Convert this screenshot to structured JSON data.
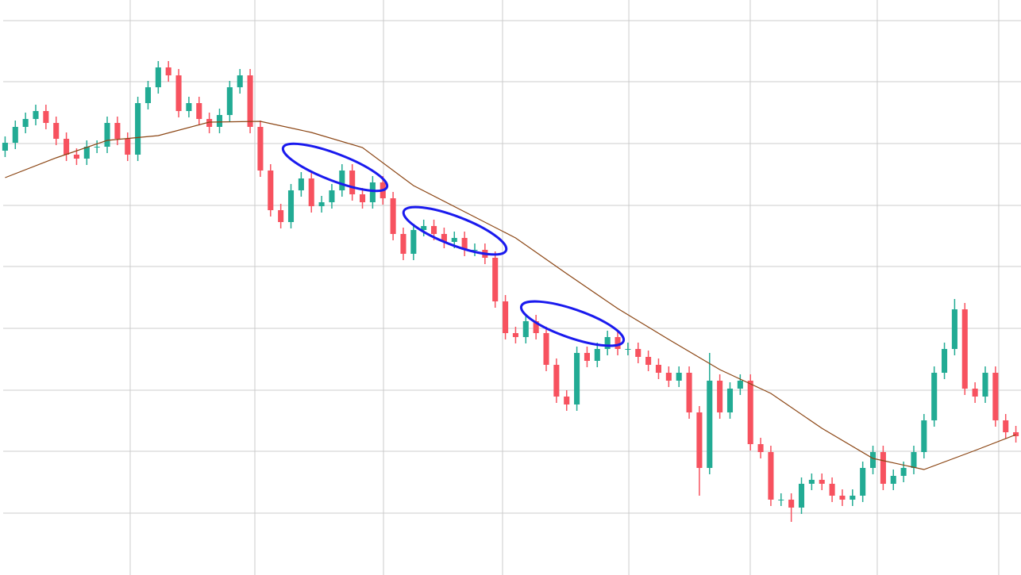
{
  "chart_data": {
    "type": "candlestick",
    "xlim": [
      -0.5,
      99.5
    ],
    "xticks": [
      12.25,
      24.46,
      37.06,
      48.72,
      61.09,
      72.98,
      85.42,
      97.32
    ],
    "ylim": [
      0,
      725
    ],
    "yticks": [
      78,
      156,
      233,
      311,
      389,
      466,
      544,
      622,
      699
    ],
    "grid": true,
    "grid_color": "#cccccc",
    "up_color": "#22ab94",
    "down_color": "#f7525f",
    "open": [
      535,
      545,
      565,
      575,
      585,
      570,
      550,
      530,
      525,
      540,
      540,
      570,
      550,
      530,
      595,
      615,
      640,
      630,
      585,
      595,
      575,
      565,
      580,
      615,
      630,
      565,
      510,
      460,
      445,
      485,
      500,
      465,
      470,
      485,
      510,
      480,
      470,
      495,
      475,
      430,
      405,
      435,
      440,
      430,
      420,
      425,
      410,
      410,
      400,
      345,
      305,
      300,
      320,
      305,
      265,
      225,
      215,
      280,
      270,
      285,
      300,
      285,
      285,
      275,
      265,
      255,
      245,
      255,
      205,
      135,
      245,
      205,
      235,
      245,
      165,
      155,
      95,
      95,
      85,
      115,
      120,
      115,
      100,
      95,
      100,
      135,
      155,
      115,
      125,
      135,
      155,
      195,
      255,
      285,
      335,
      235,
      225,
      255,
      195,
      180
    ],
    "high": [
      553,
      573,
      583,
      593,
      593,
      578,
      558,
      538,
      548,
      548,
      578,
      578,
      558,
      603,
      623,
      648,
      648,
      638,
      603,
      603,
      583,
      588,
      623,
      638,
      638,
      573,
      518,
      468,
      493,
      508,
      508,
      478,
      493,
      518,
      518,
      488,
      503,
      503,
      483,
      438,
      443,
      448,
      448,
      438,
      433,
      433,
      418,
      418,
      408,
      353,
      313,
      328,
      328,
      313,
      273,
      233,
      288,
      288,
      293,
      308,
      308,
      293,
      293,
      283,
      273,
      263,
      263,
      263,
      213,
      280,
      253,
      243,
      253,
      253,
      173,
      163,
      103,
      103,
      123,
      128,
      128,
      123,
      108,
      108,
      143,
      163,
      163,
      133,
      143,
      163,
      203,
      263,
      293,
      348,
      343,
      243,
      263,
      263,
      203,
      188
    ],
    "low": [
      527,
      537,
      557,
      567,
      562,
      542,
      522,
      517,
      517,
      532,
      532,
      542,
      522,
      522,
      587,
      607,
      622,
      577,
      577,
      567,
      557,
      557,
      572,
      607,
      557,
      502,
      452,
      437,
      437,
      477,
      457,
      457,
      462,
      477,
      472,
      462,
      462,
      467,
      422,
      397,
      397,
      427,
      422,
      412,
      412,
      402,
      402,
      392,
      337,
      297,
      292,
      292,
      297,
      257,
      217,
      207,
      207,
      262,
      262,
      277,
      277,
      277,
      267,
      257,
      247,
      237,
      237,
      197,
      100,
      127,
      197,
      197,
      227,
      157,
      147,
      87,
      87,
      67,
      77,
      107,
      107,
      92,
      87,
      87,
      92,
      127,
      107,
      107,
      117,
      127,
      147,
      187,
      247,
      277,
      227,
      217,
      217,
      187,
      172,
      167
    ],
    "close": [
      545,
      565,
      575,
      585,
      570,
      550,
      530,
      525,
      540,
      540,
      570,
      550,
      530,
      595,
      615,
      640,
      630,
      585,
      595,
      575,
      565,
      580,
      615,
      630,
      565,
      510,
      460,
      445,
      485,
      500,
      465,
      470,
      485,
      510,
      480,
      470,
      495,
      475,
      430,
      405,
      435,
      440,
      430,
      420,
      425,
      410,
      410,
      400,
      345,
      305,
      300,
      320,
      305,
      265,
      225,
      215,
      280,
      270,
      285,
      300,
      285,
      285,
      275,
      265,
      255,
      245,
      255,
      205,
      135,
      245,
      205,
      235,
      245,
      165,
      155,
      95,
      95,
      85,
      115,
      120,
      115,
      100,
      95,
      100,
      135,
      155,
      115,
      125,
      135,
      155,
      195,
      255,
      285,
      335,
      235,
      225,
      255,
      195,
      180,
      175
    ],
    "moving_average": {
      "color": "#8b4513",
      "x": [
        0,
        5,
        10,
        15,
        20,
        25,
        30,
        35,
        40,
        45,
        50,
        55,
        60,
        65,
        70,
        75,
        80,
        85,
        90,
        95,
        99
      ],
      "values": [
        501,
        526,
        548,
        554,
        571,
        572,
        558,
        539,
        491,
        458,
        425,
        380,
        336,
        297,
        259,
        229,
        185,
        147,
        133,
        157,
        177
      ]
    }
  }
}
